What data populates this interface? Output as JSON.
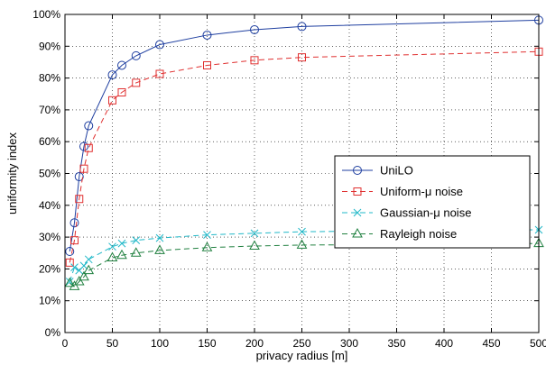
{
  "chart_data": {
    "type": "line",
    "title": "",
    "xlabel": "privacy radius [m]",
    "ylabel": "uniformity index",
    "xlim": [
      0,
      500
    ],
    "ylim": [
      0,
      100
    ],
    "x_ticks": [
      "0",
      "50",
      "100",
      "150",
      "200",
      "250",
      "300",
      "350",
      "400",
      "450",
      "500"
    ],
    "y_ticks": [
      "0%",
      "10%",
      "20%",
      "30%",
      "40%",
      "50%",
      "60%",
      "70%",
      "80%",
      "90%",
      "100%"
    ],
    "grid": true,
    "legend_position": "center-right",
    "x": [
      5,
      10,
      15,
      20,
      25,
      50,
      60,
      75,
      100,
      150,
      200,
      250,
      500
    ],
    "series": [
      {
        "name": "UniLO",
        "color": "#1f3fa0",
        "line_style": "solid",
        "marker": "circle",
        "values": [
          25.5,
          34.5,
          49,
          58.5,
          65,
          81,
          84,
          87,
          90.5,
          93.5,
          95.2,
          96.2,
          98.2
        ]
      },
      {
        "name": "Uniform-μ noise",
        "color": "#e03030",
        "line_style": "dashed",
        "marker": "square",
        "values": [
          22,
          29,
          42,
          51.5,
          58,
          73,
          75.5,
          78.5,
          81.3,
          84,
          85.6,
          86.5,
          88.3
        ]
      },
      {
        "name": "Gaussian-μ noise",
        "color": "#20b8c8",
        "line_style": "dashed",
        "marker": "x",
        "values": [
          16,
          20.5,
          19.5,
          21,
          23,
          27,
          28,
          29,
          29.7,
          30.7,
          31.2,
          31.7,
          32.3
        ]
      },
      {
        "name": "Rayleigh noise",
        "color": "#208040",
        "line_style": "dashed",
        "marker": "triangle",
        "values": [
          15.5,
          14.5,
          16,
          17.5,
          19.5,
          23.5,
          24.3,
          25,
          25.8,
          26.7,
          27.2,
          27.5,
          28
        ]
      }
    ]
  }
}
